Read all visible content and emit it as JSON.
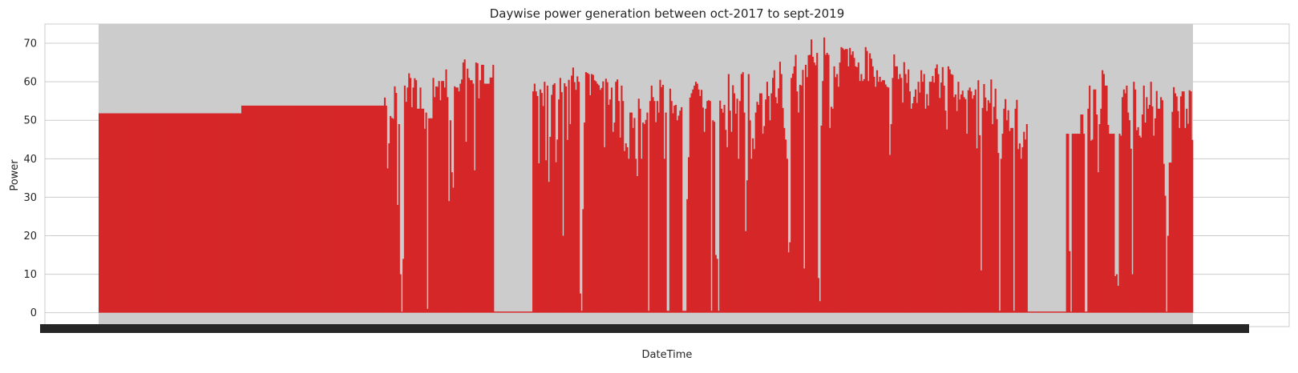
{
  "chart_data": {
    "type": "bar",
    "title": "Daywise power generation between oct-2017 to sept-2019",
    "xlabel": "DateTime",
    "ylabel": "Power",
    "ylim": [
      -3.6,
      75
    ],
    "yticks": [
      0,
      10,
      20,
      30,
      40,
      50,
      60,
      70
    ],
    "grid": true,
    "legend": "none",
    "x_tick_labels_note": "overlapping illegible date labels",
    "series": [
      {
        "color": "#d62728",
        "x_start": "2017-10-01",
        "x_end": "2019-09-30",
        "values": [
          51.8,
          51.8,
          51.8,
          51.8,
          51.8,
          51.8,
          51.8,
          51.8,
          51.8,
          51.8,
          51.8,
          51.8,
          51.8,
          51.8,
          51.8,
          51.8,
          51.8,
          51.8,
          51.8,
          51.8,
          51.8,
          51.8,
          51.8,
          51.8,
          51.8,
          51.8,
          51.8,
          51.8,
          51.8,
          51.8,
          51.8,
          51.8,
          51.8,
          51.8,
          51.8,
          51.8,
          51.8,
          51.8,
          51.8,
          51.8,
          51.8,
          51.8,
          51.8,
          51.8,
          51.8,
          51.8,
          51.8,
          51.8,
          51.8,
          51.8,
          51.8,
          51.8,
          51.8,
          51.8,
          51.8,
          51.8,
          51.8,
          51.8,
          51.8,
          51.8,
          51.8,
          51.8,
          51.8,
          51.8,
          51.8,
          51.8,
          51.8,
          51.8,
          51.8,
          51.8,
          51.8,
          51.8,
          51.8,
          51.8,
          51.8,
          51.8,
          51.8,
          51.8,
          51.8,
          51.8,
          51.8,
          51.8,
          51.8,
          51.8,
          51.8,
          51.8,
          51.8,
          51.8,
          51.8,
          51.8,
          51.8,
          51.8,
          51.8,
          51.8,
          51.8,
          51.8,
          51.8,
          51.8,
          51.8,
          51.8,
          53.8,
          53.8,
          53.8,
          53.8,
          53.8,
          53.8,
          53.8,
          53.8,
          53.8,
          53.8,
          53.8,
          53.8,
          53.8,
          53.8,
          53.8,
          53.8,
          53.8,
          53.8,
          53.8,
          53.8,
          53.8,
          53.8,
          53.8,
          53.8,
          53.8,
          53.8,
          53.8,
          53.8,
          53.8,
          53.8,
          53.8,
          53.8,
          53.8,
          53.8,
          53.8,
          53.8,
          53.8,
          53.8,
          53.8,
          53.8,
          53.8,
          53.8,
          53.8,
          53.8,
          53.8,
          53.8,
          53.8,
          53.8,
          53.8,
          53.8,
          53.8,
          53.8,
          53.8,
          53.8,
          53.8,
          53.8,
          53.8,
          53.8,
          53.8,
          53.8,
          53.8,
          53.8,
          53.8,
          53.8,
          53.8,
          53.8,
          53.8,
          53.8,
          53.8,
          53.8,
          53.8,
          53.8,
          53.8,
          53.8,
          53.8,
          53.8,
          53.8,
          53.8,
          53.8,
          53.8,
          53.8,
          53.8,
          53.8,
          53.8,
          53.8,
          53.8,
          53.8,
          53.8,
          53.8,
          53.8,
          53.8,
          53.8,
          53.8,
          53.8,
          53.8,
          53.8,
          53.8,
          53.8,
          53.8,
          53.8,
          55.9,
          53.8,
          37.5,
          44.0,
          51.1,
          50.6,
          50.4,
          58.8,
          57.1,
          28.0,
          49.0,
          10.0,
          0.0,
          14.0,
          59.0,
          54.8,
          58.5,
          62.2,
          61.0,
          53.4,
          58.5,
          60.9,
          60.4,
          53.0,
          53.0,
          58.5,
          53.0,
          53.0,
          47.8,
          52.0,
          1.0,
          50.5,
          50.5,
          50.5,
          61.0,
          56.0,
          58.8,
          58.7,
          60.2,
          55.2,
          60.2,
          60.2,
          58.5,
          63.2,
          56.0,
          29.0,
          50.0,
          36.5,
          32.5,
          58.8,
          58.5,
          58.5,
          57.5,
          59.5,
          60.6,
          65.0,
          65.8,
          44.4,
          63.4,
          61.0,
          60.4,
          60.4,
          59.5,
          37.0,
          65.0,
          64.8,
          55.7,
          60.4,
          64.4,
          64.4,
          59.5,
          59.5,
          59.5,
          59.5,
          61.1,
          61.1,
          64.4,
          0.3,
          0.3,
          0.3,
          0.3,
          0.3,
          0.3,
          0.3,
          0.3,
          0.3,
          0.3,
          0.3,
          0.3,
          0.3,
          0.3,
          0.3,
          0.3,
          0.3,
          0.3,
          0.3,
          0.3,
          0.3,
          0.3,
          0.3,
          0.3,
          0.3,
          0.3,
          0.3,
          57.5,
          59.5,
          57.5,
          56.3,
          38.8,
          58.0,
          57.1,
          53.7,
          60.0,
          39.6,
          59.0,
          34.0,
          45.7,
          56.6,
          59.2,
          59.6,
          39.1,
          45.0,
          55.4,
          61.0,
          57.3,
          20.0,
          59.6,
          58.8,
          44.9,
          60.5,
          49.0,
          61.6,
          63.7,
          59.9,
          57.9,
          61.4,
          60.0,
          5.0,
          0.5,
          26.9,
          49.4,
          62.5,
          62.3,
          62.0,
          56.5,
          62.0,
          61.8,
          60.4,
          60.1,
          59.5,
          59.1,
          57.9,
          58.4,
          60.1,
          43.0,
          60.8,
          59.9,
          54.0,
          55.4,
          58.5,
          47.0,
          49.4,
          60.0,
          60.6,
          55.0,
          45.5,
          59.0,
          55.0,
          42.0,
          44.0,
          43.0,
          40.0,
          52.0,
          52.0,
          48.0,
          50.6,
          40.0,
          35.5,
          55.6,
          53.0,
          40.0,
          49.4,
          49.0,
          50.1,
          52.0,
          0.5,
          55.0,
          59.0,
          56.0,
          55.0,
          49.5,
          55.0,
          52.0,
          60.5,
          58.6,
          59.2,
          40.0,
          52.0,
          0.5,
          0.5,
          58.2,
          55.0,
          51.8,
          53.8,
          54.0,
          50.0,
          51.2,
          52.5,
          53.4,
          0.5,
          0.5,
          0.5,
          29.5,
          40.4,
          55.9,
          57.0,
          58.0,
          59.0,
          60.0,
          59.5,
          58.0,
          56.3,
          57.9,
          53.3,
          47.0,
          53.0,
          55.0,
          55.2,
          55.0,
          0.5,
          50.0,
          49.6,
          15.0,
          14.0,
          0.5,
          55.1,
          53.0,
          52.0,
          54.0,
          47.5,
          43.0,
          62.0,
          52.5,
          47.0,
          59.1,
          57.0,
          51.7,
          55.6,
          40.0,
          55.0,
          62.0,
          62.5,
          52.0,
          21.2,
          34.4,
          62.0,
          50.0,
          40.0,
          45.3,
          42.5,
          52.0,
          54.8,
          54.0,
          57.0,
          57.0,
          46.5,
          48.5,
          55.4,
          60.0,
          56.3,
          50.0,
          57.0,
          61.0,
          63.0,
          56.0,
          54.4,
          58.3,
          65.2,
          62.0,
          53.2,
          48.0,
          45.0,
          40.0,
          15.7,
          18.3,
          61.0,
          62.1,
          64.0,
          67.0,
          57.5,
          52.0,
          59.2,
          59.0,
          63.1,
          11.5,
          64.4,
          61.2,
          66.9,
          67.0,
          71.0,
          66.5,
          65.0,
          64.3,
          67.5,
          9.0,
          3.0,
          48.6,
          60.2,
          71.5,
          67.0,
          67.5,
          67.0,
          48.0,
          53.5,
          53.0,
          64.0,
          61.2,
          62.0,
          58.7,
          65.0,
          69.0,
          68.7,
          68.3,
          68.5,
          68.5,
          64.0,
          68.8,
          67.0,
          67.9,
          66.2,
          64.0,
          63.8,
          65.0,
          60.2,
          62.0,
          60.2,
          60.7,
          69.0,
          68.0,
          60.2,
          67.4,
          66.0,
          64.0,
          61.3,
          58.7,
          63.0,
          60.0,
          61.3,
          60.0,
          60.4,
          60.4,
          59.3,
          58.7,
          58.5,
          41.0,
          49.0,
          61.0,
          67.1,
          64.0,
          64.0,
          60.7,
          62.0,
          61.0,
          54.6,
          65.1,
          62.0,
          59.7,
          63.2,
          57.5,
          53.0,
          54.4,
          56.1,
          58.0,
          54.5,
          60.0,
          57.2,
          63.0,
          60.0,
          62.0,
          53.0,
          56.8,
          53.8,
          60.0,
          60.0,
          61.5,
          59.8,
          63.5,
          64.5,
          62.0,
          55.8,
          59.8,
          63.8,
          59.0,
          52.5,
          47.6,
          64.0,
          63.2,
          62.0,
          61.8,
          56.0,
          56.7,
          52.4,
          60.0,
          55.4,
          56.7,
          57.7,
          56.0,
          55.5,
          46.5,
          57.8,
          58.5,
          57.5,
          55.6,
          56.5,
          58.0,
          42.7,
          60.4,
          46.1,
          11.0,
          53.2,
          59.4,
          55.9,
          52.4,
          55.2,
          54.5,
          60.6,
          49.0,
          53.5,
          58.2,
          50.3,
          41.5,
          0.5,
          40.0,
          46.5,
          53.0,
          55.5,
          50.0,
          52.6,
          47.2,
          48.0,
          48.0,
          0.5,
          53.0,
          55.3,
          42.5,
          44.0,
          40.0,
          43.0,
          47.0,
          45.0,
          49.0,
          0.3,
          0.3,
          0.3,
          0.3,
          0.3,
          0.3,
          0.3,
          0.3,
          0.3,
          0.3,
          0.3,
          0.3,
          0.3,
          0.3,
          0.3,
          0.3,
          0.3,
          0.3,
          0.3,
          0.3,
          0.3,
          0.3,
          0.3,
          0.3,
          0.3,
          0.3,
          0.3,
          46.5,
          46.5,
          16.0,
          0.3,
          46.5,
          46.5,
          46.5,
          46.5,
          46.5,
          46.5,
          51.5,
          51.5,
          46.5,
          0.3,
          0.3,
          53.0,
          59.0,
          44.7,
          45.0,
          58.0,
          58.0,
          51.5,
          36.5,
          49.0,
          53.0,
          63.0,
          62.0,
          59.0,
          59.0,
          48.8,
          46.5,
          46.5,
          46.5,
          46.5,
          9.5,
          10.0,
          7.0,
          46.5,
          46.0,
          56.0,
          58.0,
          57.0,
          59.0,
          52.0,
          50.0,
          42.6,
          10.0,
          60.0,
          58.0,
          47.4,
          48.2,
          46.0,
          45.5,
          51.5,
          59.0,
          49.4,
          56.0,
          53.0,
          54.0,
          60.0,
          53.6,
          46.0,
          50.5,
          57.6,
          53.0,
          53.0,
          56.0,
          55.2,
          38.7,
          30.4,
          0.3,
          20.0,
          39.0,
          39.0,
          52.2,
          58.6,
          57.0,
          56.2,
          52.4,
          48.0,
          56.2,
          57.5,
          57.5,
          48.0,
          53.0,
          49.1,
          57.8,
          57.5,
          44.9
        ]
      }
    ]
  }
}
